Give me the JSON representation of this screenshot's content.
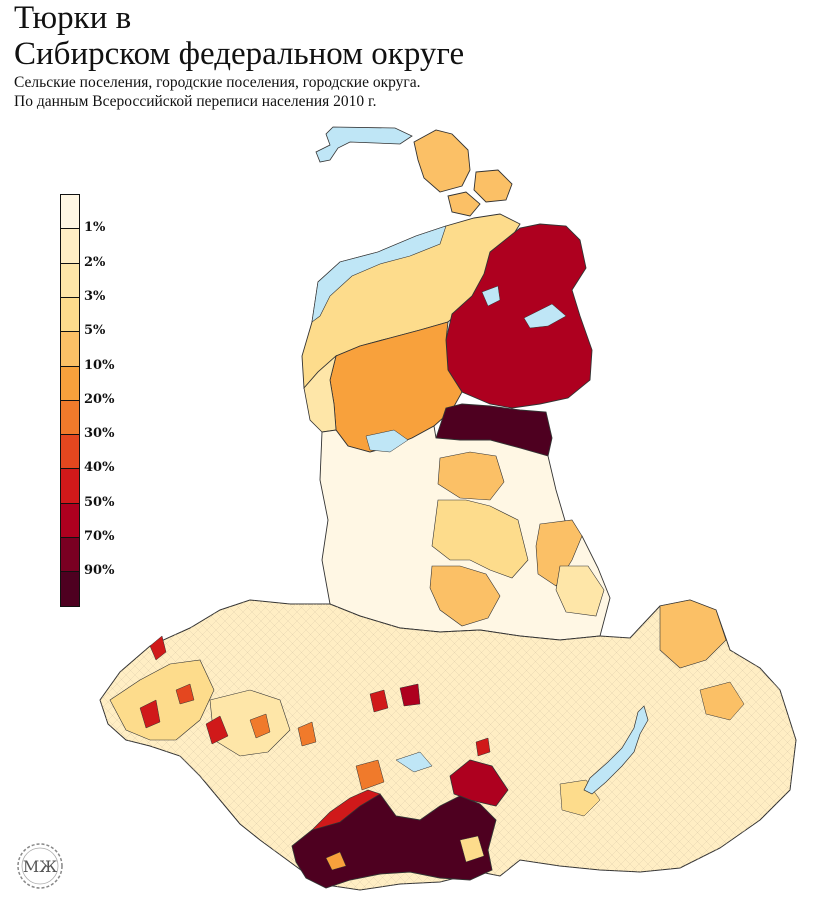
{
  "title": {
    "line1": "Тюрки в",
    "line2": "Сибирском федеральном округе",
    "subtitle1": "Сельские поселения, городские поселения, городские округа.",
    "subtitle2": "По данным Всероссийской переписи населения 2010 г."
  },
  "legend": {
    "labels": [
      "1%",
      "2%",
      "3%",
      "5%",
      "10%",
      "20%",
      "30%",
      "40%",
      "50%",
      "70%",
      "90%"
    ],
    "colors": [
      "#fff7e4",
      "#ffeec4",
      "#fee6a8",
      "#fddc8c",
      "#fbc066",
      "#f8a13c",
      "#f07a2b",
      "#e4471f",
      "#d0191a",
      "#ae001f",
      "#7a0022",
      "#4e0020"
    ]
  },
  "map": {
    "water_color": "#bfe6f6",
    "border_color": "#333333"
  },
  "logo": {
    "text": "МЖ"
  }
}
